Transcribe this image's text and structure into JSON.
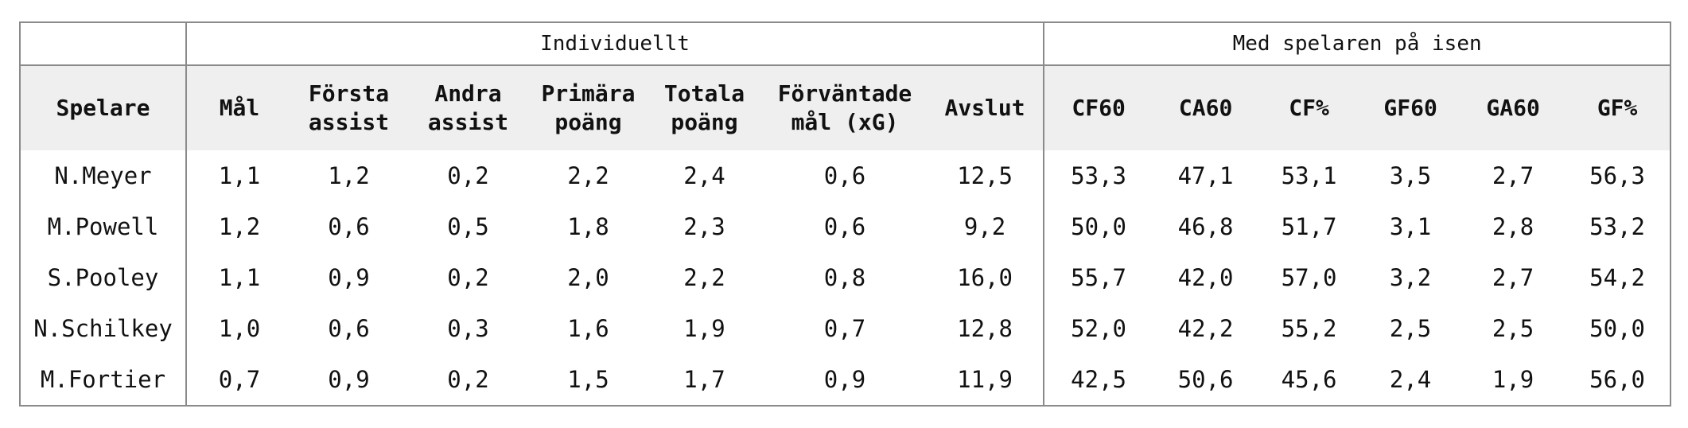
{
  "table": {
    "groups": [
      "Individuellt",
      "Med spelaren på isen"
    ],
    "columns": [
      "Spelare",
      "Mål",
      "Första assist",
      "Andra assist",
      "Primära poäng",
      "Totala poäng",
      "Förväntade mål (xG)",
      "Avslut",
      "CF60",
      "CA60",
      "CF%",
      "GF60",
      "GA60",
      "GF%"
    ],
    "rows": [
      [
        "N.Meyer",
        "1,1",
        "1,2",
        "0,2",
        "2,2",
        "2,4",
        "0,6",
        "12,5",
        "53,3",
        "47,1",
        "53,1",
        "3,5",
        "2,7",
        "56,3"
      ],
      [
        "M.Powell",
        "1,2",
        "0,6",
        "0,5",
        "1,8",
        "2,3",
        "0,6",
        "9,2",
        "50,0",
        "46,8",
        "51,7",
        "3,1",
        "2,8",
        "53,2"
      ],
      [
        "S.Pooley",
        "1,1",
        "0,9",
        "0,2",
        "2,0",
        "2,2",
        "0,8",
        "16,0",
        "55,7",
        "42,0",
        "57,0",
        "3,2",
        "2,7",
        "54,2"
      ],
      [
        "N.Schilkey",
        "1,0",
        "0,6",
        "0,3",
        "1,6",
        "1,9",
        "0,7",
        "12,8",
        "52,0",
        "42,2",
        "55,2",
        "2,5",
        "2,5",
        "50,0"
      ],
      [
        "M.Fortier",
        "0,7",
        "0,9",
        "0,2",
        "1,5",
        "1,7",
        "0,9",
        "11,9",
        "42,5",
        "50,6",
        "45,6",
        "2,4",
        "1,9",
        "56,0"
      ]
    ]
  }
}
